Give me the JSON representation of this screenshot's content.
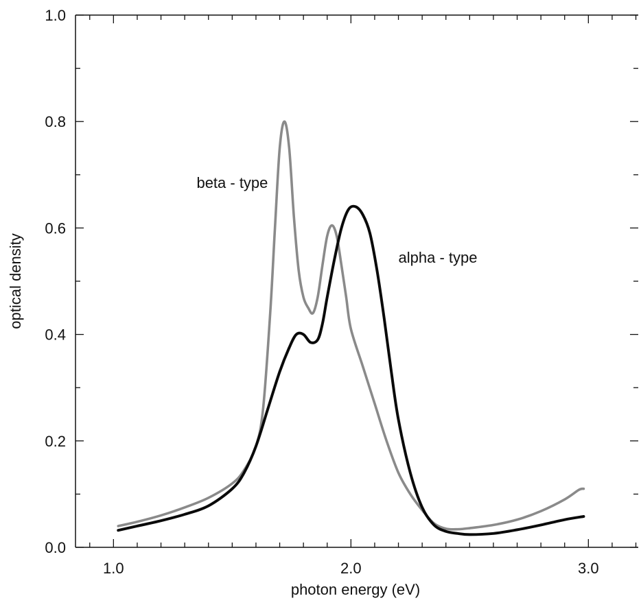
{
  "chart_data": {
    "type": "line",
    "title": "",
    "xlabel": "photon energy  (eV)",
    "ylabel": "optical density",
    "xlim": [
      0.84,
      3.21
    ],
    "ylim": [
      0.0,
      1.0
    ],
    "x_ticks": [
      1.0,
      2.0,
      3.0
    ],
    "x_tick_labels": [
      "1.0",
      "2.0",
      "3.0"
    ],
    "x_minor_step": 0.1,
    "y_ticks": [
      0.0,
      0.2,
      0.4,
      0.6,
      0.8,
      1.0
    ],
    "y_tick_labels": [
      "0.0",
      "0.2",
      "0.4",
      "0.6",
      "0.8",
      "1.0"
    ],
    "y_minor_step": 0.1,
    "grid": false,
    "legend": "none",
    "series": [
      {
        "name": "beta - type",
        "color": "#8a8a8a",
        "x": [
          1.02,
          1.1,
          1.2,
          1.3,
          1.4,
          1.5,
          1.55,
          1.6,
          1.63,
          1.66,
          1.68,
          1.7,
          1.72,
          1.74,
          1.76,
          1.78,
          1.8,
          1.82,
          1.84,
          1.86,
          1.88,
          1.9,
          1.92,
          1.94,
          1.96,
          1.98,
          2.0,
          2.05,
          2.1,
          2.15,
          2.2,
          2.25,
          2.3,
          2.35,
          2.4,
          2.45,
          2.5,
          2.6,
          2.7,
          2.8,
          2.9,
          2.96,
          2.98
        ],
        "y": [
          0.04,
          0.048,
          0.06,
          0.075,
          0.093,
          0.12,
          0.145,
          0.19,
          0.26,
          0.44,
          0.6,
          0.75,
          0.8,
          0.75,
          0.62,
          0.52,
          0.47,
          0.45,
          0.44,
          0.47,
          0.53,
          0.585,
          0.605,
          0.585,
          0.53,
          0.47,
          0.41,
          0.34,
          0.27,
          0.2,
          0.14,
          0.1,
          0.07,
          0.045,
          0.035,
          0.034,
          0.036,
          0.042,
          0.052,
          0.068,
          0.09,
          0.108,
          0.11
        ]
      },
      {
        "name": "alpha - type",
        "color": "#0a0a0a",
        "x": [
          1.02,
          1.1,
          1.2,
          1.3,
          1.4,
          1.5,
          1.55,
          1.6,
          1.65,
          1.7,
          1.74,
          1.77,
          1.8,
          1.83,
          1.86,
          1.88,
          1.9,
          1.93,
          1.96,
          1.99,
          2.02,
          2.05,
          2.08,
          2.11,
          2.14,
          2.17,
          2.2,
          2.25,
          2.3,
          2.35,
          2.4,
          2.45,
          2.5,
          2.6,
          2.7,
          2.8,
          2.9,
          2.98
        ],
        "y": [
          0.032,
          0.04,
          0.05,
          0.062,
          0.078,
          0.11,
          0.14,
          0.19,
          0.26,
          0.33,
          0.375,
          0.4,
          0.4,
          0.385,
          0.39,
          0.42,
          0.47,
          0.54,
          0.6,
          0.635,
          0.64,
          0.625,
          0.59,
          0.52,
          0.43,
          0.33,
          0.24,
          0.14,
          0.075,
          0.042,
          0.03,
          0.026,
          0.024,
          0.026,
          0.033,
          0.042,
          0.052,
          0.058
        ]
      }
    ],
    "annotations": [
      {
        "text": "beta - type",
        "x": 1.35,
        "y": 0.675
      },
      {
        "text": "alpha - type",
        "x": 2.2,
        "y": 0.535
      }
    ]
  }
}
